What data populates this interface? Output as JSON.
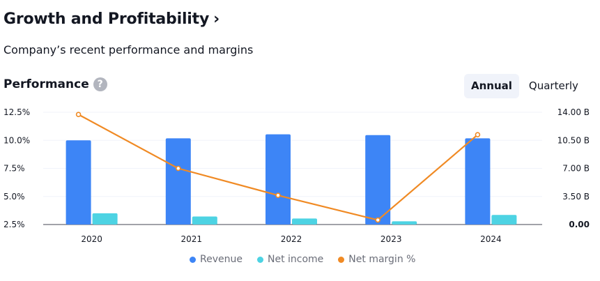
{
  "header": {
    "title": "Growth and Profitability",
    "title_chevron": "›",
    "subtitle": "Company’s recent performance and margins"
  },
  "performance": {
    "title": "Performance",
    "help_glyph": "?",
    "tabs": [
      {
        "label": "Annual",
        "active": true
      },
      {
        "label": "Quarterly",
        "active": false
      }
    ]
  },
  "colors": {
    "revenue": "#3d85f6",
    "net_income": "#4dd3e3",
    "net_margin": "#f08a24"
  },
  "chart_data": {
    "type": "bar",
    "categories": [
      "2020",
      "2021",
      "2022",
      "2023",
      "2024"
    ],
    "series": [
      {
        "name": "Revenue",
        "type": "bar",
        "axis": "right",
        "values": [
          10.5,
          10.75,
          11.25,
          11.15,
          10.75
        ]
      },
      {
        "name": "Net income",
        "type": "bar",
        "axis": "right",
        "values": [
          1.4,
          1.0,
          0.75,
          0.4,
          1.2
        ]
      },
      {
        "name": "Net margin %",
        "type": "line",
        "axis": "left",
        "values": [
          12.3,
          7.5,
          5.1,
          2.9,
          10.5
        ]
      }
    ],
    "left_axis": {
      "ticks": [
        "12.5%",
        "10.0%",
        "7.5%",
        "5.0%",
        "2.5%"
      ],
      "range": [
        2.5,
        12.5
      ]
    },
    "right_axis": {
      "ticks": [
        "14.00 B",
        "10.50 B",
        "7.00 B",
        "3.50 B",
        "0.00"
      ],
      "range": [
        0,
        14
      ]
    },
    "legend_placement": "bottom-center"
  }
}
